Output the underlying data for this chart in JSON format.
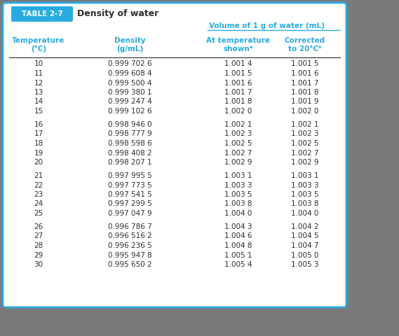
{
  "title_box": "TABLE 2-7",
  "title_text": "Density of water",
  "col_header1": "Temperature\n(°C)",
  "col_header2": "Density\n(g/mL)",
  "col_header3": "At temperature\nshownᵃ",
  "col_header4": "Corrected\nto 20°Cᵇ",
  "volume_header": "Volume of 1 g of water (mL)",
  "temperatures": [
    10,
    11,
    12,
    13,
    14,
    15,
    16,
    17,
    18,
    19,
    20,
    21,
    22,
    23,
    24,
    25,
    26,
    27,
    28,
    29,
    30
  ],
  "density": [
    "0.999 702 6",
    "0.999 608 4",
    "0.999 500 4",
    "0.999 380 1",
    "0.999 247 4",
    "0.999 102 6",
    "0.998 946 0",
    "0.998 777 9",
    "0.998 598 6",
    "0.998 408 2",
    "0.998 207 1",
    "0.997 995 5",
    "0.997 773 5",
    "0.997 541 5",
    "0.997 299 5",
    "0.997 047 9",
    "0.996 786 7",
    "0.996 516 2",
    "0.996 236 5",
    "0.995 947 8",
    "0.995 650 2"
  ],
  "at_temp": [
    "1.001 4",
    "1.001 5",
    "1.001 6",
    "1.001 7",
    "1.001 8",
    "1.002 0",
    "1.002 1",
    "1.002 3",
    "1.002 5",
    "1.002 7",
    "1.002 9",
    "1.003 1",
    "1.003 3",
    "1.003 5",
    "1.003 8",
    "1.004 0",
    "1.004 3",
    "1.004 6",
    "1.004 8",
    "1.005 1",
    "1.005 4"
  ],
  "corrected": [
    "1.001 5",
    "1.001 6",
    "1.001 7",
    "1.001 8",
    "1.001 9",
    "1.002 0",
    "1.002 1",
    "1.002 3",
    "1.002 5",
    "1.002 7",
    "1.002 9",
    "1.003 1",
    "1.003 3",
    "1.003 5",
    "1.003 8",
    "1.004 0",
    "1.004 2",
    "1.004 5",
    "1.004 7",
    "1.005 0",
    "1.005 3"
  ],
  "cyan_color": "#29ABE2",
  "bg_color": "#ffffff",
  "outer_bg": "#7a7a7a",
  "table_border_color": "#29ABE2",
  "body_text_color": "#2d2d2d",
  "groups": [
    [
      0,
      1,
      2,
      3,
      4,
      5
    ],
    [
      6,
      7,
      8,
      9,
      10
    ],
    [
      11,
      12,
      13,
      14,
      15
    ],
    [
      16,
      17,
      18,
      19,
      20
    ]
  ]
}
